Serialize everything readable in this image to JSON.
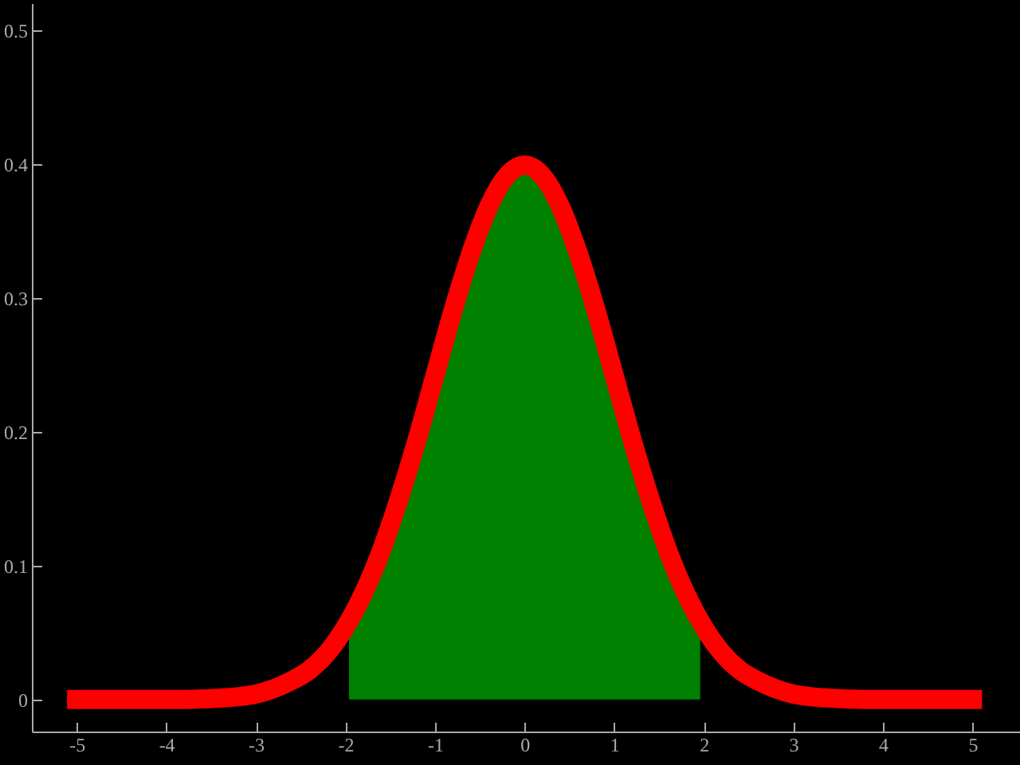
{
  "chart_data": {
    "type": "line",
    "xlim": [
      -5.5,
      5.53
    ],
    "ylim": [
      -0.024,
      0.52
    ],
    "xticks": [
      -5,
      -4,
      -3,
      -2,
      -1,
      0,
      1,
      2,
      3,
      4,
      5
    ],
    "yticks": [
      0,
      0.1,
      0.2,
      0.3,
      0.4,
      0.5
    ],
    "grid": false,
    "line_style": "solid",
    "series": [
      {
        "type": "area",
        "color": "#008000",
        "x": [
          -1.96,
          -1.8,
          -1.6,
          -1.4,
          -1.2,
          -1.0,
          -0.8,
          -0.6,
          -0.4,
          -0.2,
          0,
          0.2,
          0.4,
          0.6,
          0.8,
          1.0,
          1.2,
          1.4,
          1.6,
          1.8,
          1.96
        ],
        "values": [
          0.058,
          0.079,
          0.111,
          0.15,
          0.194,
          0.242,
          0.29,
          0.333,
          0.368,
          0.391,
          0.399,
          0.391,
          0.368,
          0.333,
          0.29,
          0.242,
          0.194,
          0.15,
          0.111,
          0.079,
          0.058
        ]
      },
      {
        "color": "#ff0000",
        "x": [
          -5,
          -4.6,
          -4.2,
          -3.8,
          -3.4,
          -3.2,
          -3.0,
          -2.8,
          -2.6,
          -2.4,
          -2.2,
          -2.0,
          -1.8,
          -1.6,
          -1.4,
          -1.2,
          -1.0,
          -0.8,
          -0.6,
          -0.4,
          -0.2,
          0,
          0.2,
          0.4,
          0.6,
          0.8,
          1.0,
          1.2,
          1.4,
          1.6,
          1.8,
          2.0,
          2.2,
          2.4,
          2.6,
          2.8,
          3.0,
          3.2,
          3.4,
          3.8,
          4.2,
          4.6,
          5
        ],
        "values": [
          0,
          0,
          0,
          0,
          0.001,
          0.002,
          0.004,
          0.008,
          0.014,
          0.022,
          0.035,
          0.054,
          0.079,
          0.111,
          0.15,
          0.194,
          0.242,
          0.29,
          0.333,
          0.368,
          0.391,
          0.399,
          0.391,
          0.368,
          0.333,
          0.29,
          0.242,
          0.194,
          0.15,
          0.111,
          0.079,
          0.054,
          0.035,
          0.022,
          0.014,
          0.008,
          0.004,
          0.002,
          0.001,
          0,
          0,
          0,
          0
        ]
      }
    ]
  }
}
